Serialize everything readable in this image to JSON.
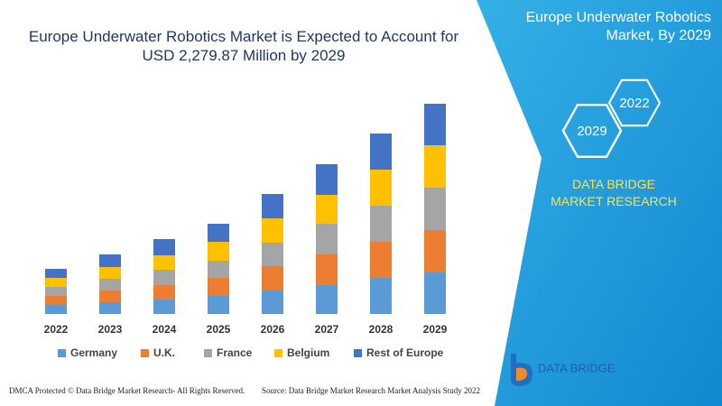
{
  "chart_data": {
    "type": "bar",
    "stacked": true,
    "title": "Europe Underwater Robotics Market is Expected to Account for USD 2,279.87 Million by 2029",
    "categories": [
      "2022",
      "2023",
      "2024",
      "2025",
      "2026",
      "2027",
      "2028",
      "2029"
    ],
    "series": [
      {
        "name": "Germany",
        "color": "#5b9bd5",
        "values": [
          10,
          13,
          16,
          20,
          26,
          32,
          40,
          46
        ]
      },
      {
        "name": "U.K.",
        "color": "#ed7d31",
        "values": [
          10,
          13,
          16,
          20,
          27,
          34,
          40,
          47
        ]
      },
      {
        "name": "France",
        "color": "#a5a5a5",
        "values": [
          10,
          13,
          17,
          19,
          26,
          34,
          40,
          47
        ]
      },
      {
        "name": "Belgium",
        "color": "#ffc000",
        "values": [
          10,
          13,
          16,
          21,
          27,
          32,
          40,
          47
        ]
      },
      {
        "name": "Rest of Europe",
        "color": "#4472c4",
        "values": [
          10,
          14,
          18,
          20,
          27,
          34,
          40,
          46
        ]
      }
    ],
    "ylim": [
      0,
      250
    ]
  },
  "panel": {
    "title": "Europe Underwater Robotics Market, By 2029",
    "hex_labels": [
      "2029",
      "2022"
    ],
    "brand": "DATA BRIDGE MARKET RESEARCH"
  },
  "logo": {
    "name": "DATA BRIDGE"
  },
  "footer": {
    "left": "DMCA Protected © Data Bridge Market Research- All Rights Reserved.",
    "right": "Source: Data Bridge Market Research Market Analysis Study 2022"
  }
}
